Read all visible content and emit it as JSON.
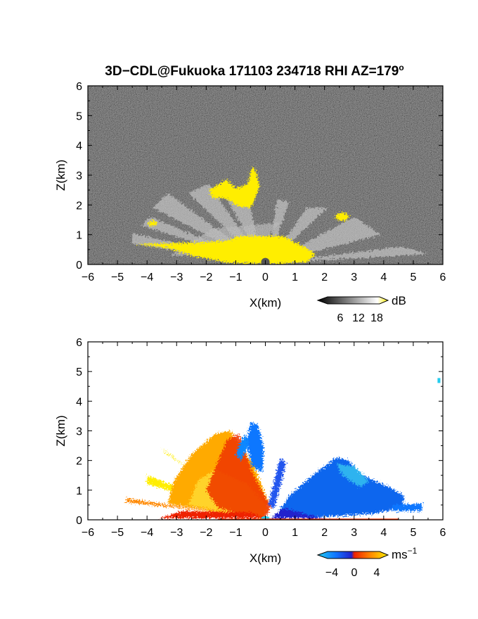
{
  "title": "3D−CDL@Fukuoka 171103 234718 RHI AZ=179",
  "title_degree": "o",
  "chart_data": [
    {
      "type": "heatmap",
      "panel": "reflectivity",
      "xlabel": "X(km)",
      "ylabel": "Z(km)",
      "xlim": [
        -6,
        6
      ],
      "ylim": [
        0,
        6
      ],
      "x_ticks": [
        "−6",
        "−5",
        "−4",
        "−3",
        "−2",
        "−1",
        "0",
        "1",
        "2",
        "3",
        "4",
        "5",
        "6"
      ],
      "y_ticks": [
        "0",
        "1",
        "2",
        "3",
        "4",
        "5",
        "6"
      ],
      "background": "noise (dark gray)",
      "colorbar": {
        "unit": "dB",
        "ticks": [
          "6",
          "12",
          "18"
        ],
        "range": [
          0,
          21
        ],
        "colors": [
          "#000000",
          "#ffffff",
          "#ffee00"
        ]
      },
      "features": [
        {
          "name": "strong echo near ground",
          "x_range": [
            -1.2,
            1.6
          ],
          "z_range": [
            0,
            0.8
          ],
          "intensity": "saturated"
        },
        {
          "name": "echo cluster aloft",
          "x_range": [
            -1.8,
            -0.2
          ],
          "z_range": [
            1.8,
            3.3
          ],
          "intensity": "saturated"
        },
        {
          "name": "small echo east",
          "x_range": [
            2.4,
            2.8
          ],
          "z_range": [
            1.5,
            1.7
          ],
          "intensity": "saturated"
        },
        {
          "name": "small echo west",
          "x_range": [
            -3.9,
            -3.7
          ],
          "z_range": [
            1.3,
            1.5
          ],
          "intensity": "saturated"
        },
        {
          "name": "weak echo fan",
          "x_range": [
            -4.5,
            5.5
          ],
          "z_range": [
            0,
            2.7
          ],
          "intensity": "weak"
        }
      ]
    },
    {
      "type": "heatmap",
      "panel": "radial_velocity",
      "xlabel": "X(km)",
      "ylabel": "Z(km)",
      "xlim": [
        -6,
        6
      ],
      "ylim": [
        0,
        6
      ],
      "x_ticks": [
        "−6",
        "−5",
        "−4",
        "−3",
        "−2",
        "−1",
        "0",
        "1",
        "2",
        "3",
        "4",
        "5",
        "6"
      ],
      "y_ticks": [
        "0",
        "1",
        "2",
        "3",
        "4",
        "5",
        "6"
      ],
      "background": "none (white)",
      "colorbar": {
        "unit": "ms",
        "unit_exponent": "−1",
        "ticks": [
          "−4",
          "0",
          "4"
        ],
        "range": [
          -6,
          6
        ],
        "colors": [
          "#22ccee",
          "#1177ff",
          "#2222cc",
          "#ee2200",
          "#ff8800",
          "#ffee00"
        ]
      },
      "features": [
        {
          "name": "receding flow west",
          "x_range": [
            -4.5,
            0
          ],
          "z_range": [
            0,
            3.2
          ],
          "velocity_ms": 4
        },
        {
          "name": "approaching flow east",
          "x_range": [
            0.3,
            5.3
          ],
          "z_range": [
            0,
            2.2
          ],
          "velocity_ms": -3
        },
        {
          "name": "updraft column",
          "x_range": [
            -0.6,
            0.1
          ],
          "z_range": [
            1.5,
            3.2
          ],
          "velocity_ms": -2
        },
        {
          "name": "isolated echo",
          "x_range": [
            5.8,
            5.95
          ],
          "z_range": [
            4.6,
            4.8
          ],
          "velocity_ms": -5
        }
      ]
    }
  ]
}
